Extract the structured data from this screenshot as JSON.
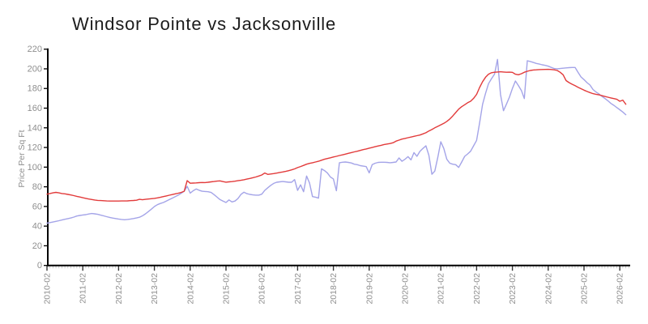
{
  "title": "Windsor Pointe vs Jacksonville",
  "chart_data": {
    "type": "line",
    "title": "Windsor Pointe vs Jacksonville",
    "xlabel": "",
    "ylabel": "Price Per Sq Ft",
    "ylim": [
      0,
      220
    ],
    "y_ticks": [
      0,
      20,
      40,
      60,
      80,
      100,
      120,
      140,
      160,
      180,
      200,
      220
    ],
    "x_tick_labels": [
      "2010-02",
      "2011-02",
      "2012-02",
      "2013-02",
      "2014-02",
      "2015-02",
      "2016-02",
      "2017-02",
      "2018-02",
      "2019-02",
      "2020-02",
      "2021-02",
      "2022-02",
      "2023-02",
      "2024-02",
      "2025-02",
      "2026-02"
    ],
    "x_minor_ticks": "monthly",
    "x_start": "2010-02",
    "x_end": "2026-04",
    "frequency": "monthly",
    "grid": false,
    "legend_position": "none",
    "colors": {
      "axis": "#000000",
      "major_tick": "#333333",
      "minor_tick": "#c2c2c2",
      "tick_label": "#8f8f8f",
      "title_text": "#1c1c1c"
    },
    "series": [
      {
        "name": "Windsor Pointe",
        "color": "#a4a4e8",
        "values": [
          43.0,
          43.6,
          44.2,
          44.8,
          45.5,
          46.2,
          47.0,
          47.6,
          48.3,
          49.2,
          50.3,
          50.8,
          51.3,
          51.7,
          52.3,
          52.8,
          52.5,
          52.0,
          51.2,
          50.4,
          49.6,
          48.9,
          48.2,
          47.7,
          47.2,
          46.8,
          46.5,
          46.8,
          47.2,
          47.7,
          48.3,
          49.0,
          50.5,
          52.5,
          54.8,
          57.3,
          59.9,
          61.8,
          63.0,
          64.0,
          65.5,
          67.0,
          68.5,
          70.0,
          71.5,
          73.5,
          75.5,
          80.5,
          73.6,
          76.0,
          77.8,
          76.5,
          75.5,
          75.2,
          75.0,
          74.2,
          72.0,
          69.5,
          67.0,
          65.4,
          64.0,
          66.7,
          64.6,
          65.5,
          68.0,
          72.2,
          74.5,
          73.0,
          72.3,
          71.8,
          71.5,
          71.5,
          72.5,
          76.4,
          79.0,
          81.5,
          83.5,
          84.6,
          85.0,
          85.4,
          85.0,
          84.6,
          84.6,
          87.3,
          76.4,
          82.0,
          75.0,
          91.0,
          84.0,
          70.0,
          69.5,
          68.5,
          98.3,
          96.5,
          94.0,
          90.0,
          88.0,
          76.0,
          104.5,
          105.0,
          105.2,
          104.8,
          104.2,
          103.0,
          102.5,
          101.5,
          101.0,
          100.5,
          94.2,
          102.5,
          104.0,
          104.8,
          105.0,
          105.0,
          104.8,
          104.5,
          104.8,
          105.2,
          109.3,
          106.0,
          108.0,
          110.7,
          107.4,
          114.8,
          111.0,
          116.0,
          119.0,
          121.7,
          112.0,
          92.8,
          96.0,
          110.0,
          125.8,
          119.0,
          108.0,
          104.0,
          103.0,
          102.5,
          99.7,
          105.2,
          111.0,
          113.5,
          116.2,
          121.7,
          127.2,
          145.0,
          164.0,
          175.2,
          184.9,
          190.0,
          194.5,
          209.6,
          173.9,
          157.4,
          164.0,
          171.1,
          180.0,
          187.6,
          183.0,
          178.0,
          169.7,
          208.2,
          207.5,
          206.5,
          205.5,
          204.8,
          204.1,
          203.5,
          202.7,
          201.5,
          200.3,
          200.0,
          200.3,
          200.6,
          201.0,
          201.2,
          201.4,
          201.4,
          196.5,
          191.7,
          189.0,
          186.0,
          183.5,
          179.0,
          176.5,
          174.5,
          172.0,
          169.8,
          167.5,
          164.8,
          162.9,
          160.6,
          158.4,
          156.1,
          153.3
        ]
      },
      {
        "name": "Jacksonville",
        "color": "#e23b3b",
        "values": [
          72.5,
          73.2,
          73.8,
          74.3,
          73.8,
          73.2,
          72.8,
          72.3,
          71.7,
          71.0,
          70.3,
          69.6,
          68.9,
          68.2,
          67.6,
          67.1,
          66.6,
          66.2,
          66.0,
          65.8,
          65.6,
          65.5,
          65.5,
          65.5,
          65.5,
          65.6,
          65.6,
          65.7,
          65.9,
          66.1,
          66.3,
          67.2,
          66.8,
          67.2,
          67.6,
          67.9,
          68.2,
          68.7,
          69.3,
          70.0,
          70.7,
          71.4,
          72.1,
          72.8,
          73.5,
          74.3,
          75.5,
          86.3,
          83.6,
          83.8,
          84.0,
          84.2,
          84.4,
          84.3,
          84.6,
          85.0,
          85.4,
          85.8,
          86.0,
          85.3,
          84.7,
          85.0,
          85.3,
          85.7,
          86.2,
          86.6,
          87.2,
          87.8,
          88.5,
          89.2,
          90.0,
          91.0,
          92.0,
          94.0,
          92.6,
          93.0,
          93.4,
          93.9,
          94.6,
          95.1,
          95.7,
          96.4,
          97.2,
          98.2,
          99.5,
          100.6,
          101.8,
          103.0,
          103.8,
          104.5,
          105.2,
          106.0,
          107.0,
          108.0,
          108.8,
          109.5,
          110.3,
          111.0,
          111.8,
          112.5,
          113.2,
          114.0,
          114.8,
          115.5,
          116.2,
          117.0,
          117.8,
          118.5,
          119.3,
          120.0,
          120.8,
          121.5,
          122.2,
          123.0,
          123.5,
          124.0,
          124.8,
          126.5,
          127.5,
          128.5,
          129.2,
          129.9,
          130.6,
          131.3,
          132.0,
          132.7,
          133.8,
          135.0,
          136.8,
          138.3,
          140.0,
          141.5,
          143.0,
          144.5,
          146.5,
          149.0,
          152.0,
          155.5,
          159.0,
          161.5,
          163.5,
          165.5,
          167.0,
          170.0,
          174.0,
          181.0,
          187.0,
          191.5,
          194.5,
          196.0,
          196.5,
          196.8,
          197.0,
          196.8,
          196.5,
          196.6,
          196.4,
          194.5,
          194.0,
          195.0,
          196.5,
          197.5,
          198.3,
          198.8,
          199.0,
          199.2,
          199.3,
          199.4,
          199.5,
          199.3,
          199.0,
          198.3,
          196.5,
          194.0,
          188.0,
          186.0,
          184.3,
          182.8,
          181.3,
          179.8,
          178.3,
          177.0,
          175.8,
          174.8,
          174.1,
          173.5,
          172.7,
          171.9,
          171.1,
          170.4,
          169.7,
          169.0,
          167.0,
          168.2,
          164.0
        ]
      }
    ]
  }
}
